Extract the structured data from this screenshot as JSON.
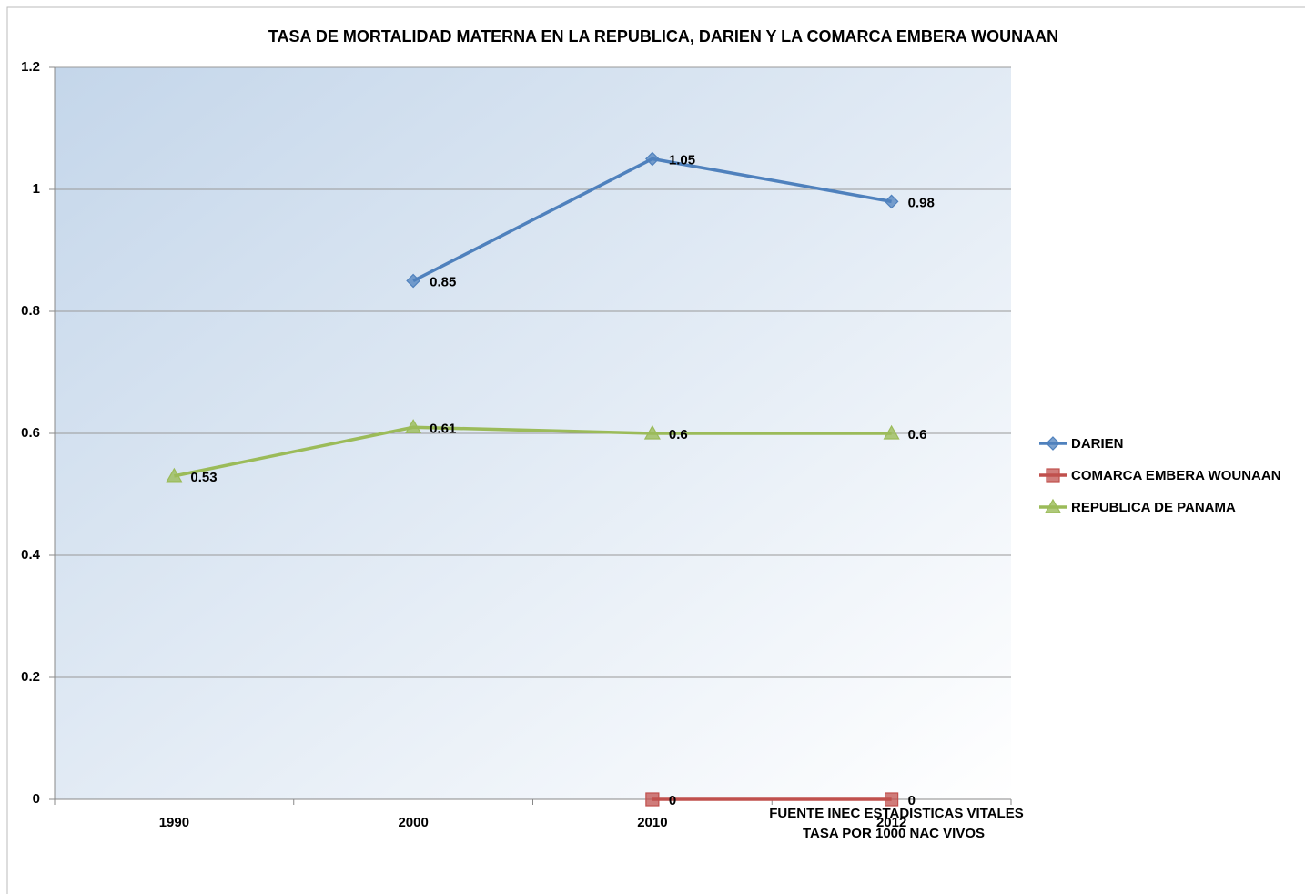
{
  "chart_data": {
    "type": "line",
    "title": "TASA DE MORTALIDAD MATERNA EN LA REPUBLICA, DARIEN Y LA COMARCA EMBERA WOUNAAN",
    "categories": [
      "1990",
      "2000",
      "2010",
      "2012"
    ],
    "series": [
      {
        "name": "DARIEN",
        "color": "#4f81bd",
        "marker": "diamond",
        "values": [
          null,
          0.85,
          1.05,
          0.98
        ]
      },
      {
        "name": "COMARCA EMBERA WOUNAAN",
        "color": "#c0504d",
        "marker": "square",
        "values": [
          null,
          null,
          0,
          0
        ]
      },
      {
        "name": "REPUBLICA DE PANAMA",
        "color": "#9bbb59",
        "marker": "triangle",
        "values": [
          0.53,
          0.61,
          0.6,
          0.6
        ]
      }
    ],
    "ylim": [
      0,
      1.2
    ],
    "yticks": [
      0,
      0.2,
      0.4,
      0.6,
      0.8,
      1,
      1.2
    ],
    "grid": true,
    "legend": "right",
    "annotations": [
      "FUENTE INEC ESTADISTICAS VITALES",
      "TASA POR 1000 NAC VIVOS"
    ]
  }
}
